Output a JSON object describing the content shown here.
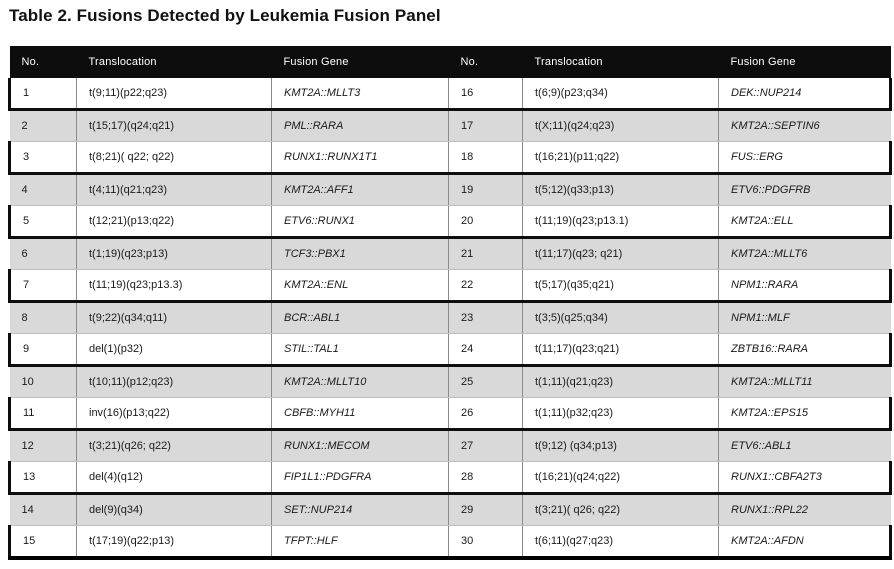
{
  "title": "Table 2. Fusions Detected by Leukemia Fusion Panel",
  "colors": {
    "header_bg": "#0d0d0d",
    "header_text": "#ffffff",
    "row_bg": "#ffffff",
    "row_alt_bg": "#d9d9d9",
    "black_border": "#000000",
    "divider_gray": "#8c8c8c"
  },
  "table": {
    "column_headers": [
      "No.",
      "Translocation",
      "Fusion Gene",
      "No.",
      "Translocation",
      "Fusion Gene"
    ],
    "entries": [
      {
        "no": "1",
        "translocation": "t(9;11)(p22;q23)",
        "fusion_gene": "KMT2A::MLLT3"
      },
      {
        "no": "2",
        "translocation": "t(15;17)(q24;q21)",
        "fusion_gene": "PML::RARA"
      },
      {
        "no": "3",
        "translocation": "t(8;21)( q22; q22)",
        "fusion_gene": "RUNX1::RUNX1T1"
      },
      {
        "no": "4",
        "translocation": "t(4;11)(q21;q23)",
        "fusion_gene": "KMT2A::AFF1"
      },
      {
        "no": "5",
        "translocation": "t(12;21)(p13;q22)",
        "fusion_gene": "ETV6::RUNX1"
      },
      {
        "no": "6",
        "translocation": "t(1;19)(q23;p13)",
        "fusion_gene": "TCF3::PBX1"
      },
      {
        "no": "7",
        "translocation": "t(11;19)(q23;p13.3)",
        "fusion_gene": "KMT2A::ENL"
      },
      {
        "no": "8",
        "translocation": "t(9;22)(q34;q11)",
        "fusion_gene": "BCR::ABL1"
      },
      {
        "no": "9",
        "translocation": "del(1)(p32)",
        "fusion_gene": "STIL::TAL1"
      },
      {
        "no": "10",
        "translocation": "t(10;11)(p12;q23)",
        "fusion_gene": "KMT2A::MLLT10"
      },
      {
        "no": "11",
        "translocation": "inv(16)(p13;q22)",
        "fusion_gene": "CBFB::MYH11"
      },
      {
        "no": "12",
        "translocation": "t(3;21)(q26; q22)",
        "fusion_gene": "RUNX1::MECOM"
      },
      {
        "no": "13",
        "translocation": "del(4)(q12)",
        "fusion_gene": "FIP1L1::PDGFRA"
      },
      {
        "no": "14",
        "translocation": "del(9)(q34)",
        "fusion_gene": "SET::NUP214"
      },
      {
        "no": "15",
        "translocation": "t(17;19)(q22;p13)",
        "fusion_gene": "TFPT::HLF"
      },
      {
        "no": "16",
        "translocation": "t(6;9)(p23;q34)",
        "fusion_gene": "DEK::NUP214"
      },
      {
        "no": "17",
        "translocation": "t(X;11)(q24;q23)",
        "fusion_gene": "KMT2A::SEPTIN6"
      },
      {
        "no": "18",
        "translocation": "t(16;21)(p11;q22)",
        "fusion_gene": "FUS::ERG"
      },
      {
        "no": "19",
        "translocation": "t(5;12)(q33;p13)",
        "fusion_gene": "ETV6::PDGFRB"
      },
      {
        "no": "20",
        "translocation": "t(11;19)(q23;p13.1)",
        "fusion_gene": "KMT2A::ELL"
      },
      {
        "no": "21",
        "translocation": "t(11;17)(q23; q21)",
        "fusion_gene": "KMT2A::MLLT6"
      },
      {
        "no": "22",
        "translocation": "t(5;17)(q35;q21)",
        "fusion_gene": "NPM1::RARA"
      },
      {
        "no": "23",
        "translocation": "t(3;5)(q25;q34)",
        "fusion_gene": "NPM1::MLF"
      },
      {
        "no": "24",
        "translocation": "t(11;17)(q23;q21)",
        "fusion_gene": "ZBTB16::RARA"
      },
      {
        "no": "25",
        "translocation": "t(1;11)(q21;q23)",
        "fusion_gene": "KMT2A::MLLT11"
      },
      {
        "no": "26",
        "translocation": "t(1;11)(p32;q23)",
        "fusion_gene": "KMT2A::EPS15"
      },
      {
        "no": "27",
        "translocation": "t(9;12) (q34;p13)",
        "fusion_gene": "ETV6::ABL1"
      },
      {
        "no": "28",
        "translocation": "t(16;21)(q24;q22)",
        "fusion_gene": "RUNX1::CBFA2T3"
      },
      {
        "no": "29",
        "translocation": "t(3;21)( q26; q22)",
        "fusion_gene": "RUNX1::RPL22"
      },
      {
        "no": "30",
        "translocation": "t(6;11)(q27;q23)",
        "fusion_gene": "KMT2A::AFDN"
      }
    ]
  }
}
